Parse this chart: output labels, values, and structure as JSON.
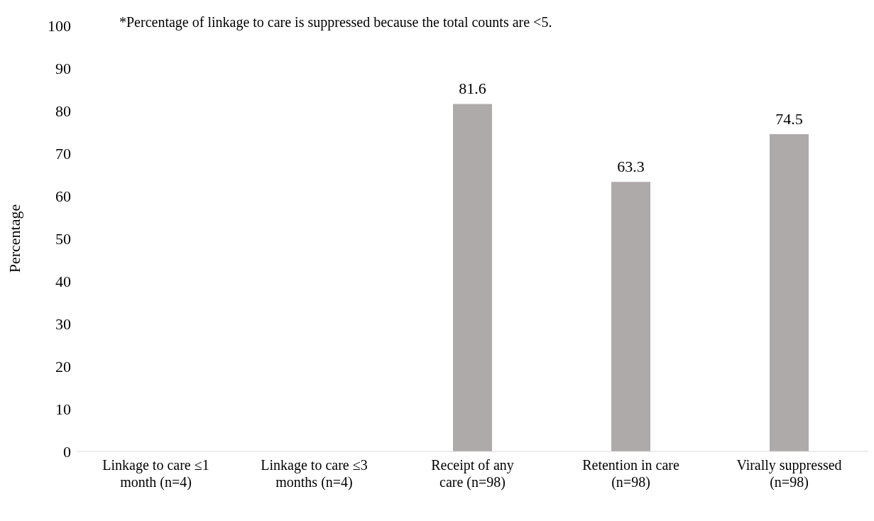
{
  "chart_data": {
    "type": "bar",
    "annotations": [
      "*Percentage of linkage to care is suppressed because the total counts are <5."
    ],
    "ylabel": "Percentage",
    "categories": [
      "Linkage to care ≤1 month (n=4)",
      "Linkage to care ≤3 months (n=4)",
      "Receipt of any care (n=98)",
      "Retention in care (n=98)",
      "Virally suppressed (n=98)"
    ],
    "values": [
      null,
      null,
      81.6,
      63.3,
      74.5
    ],
    "color": "#aeaaaa",
    "ylim": [
      0,
      100
    ],
    "yticks": [
      0,
      10,
      20,
      30,
      40,
      50,
      60,
      70,
      80,
      90,
      100
    ],
    "data_labels": true,
    "grid": false,
    "legend": false
  }
}
